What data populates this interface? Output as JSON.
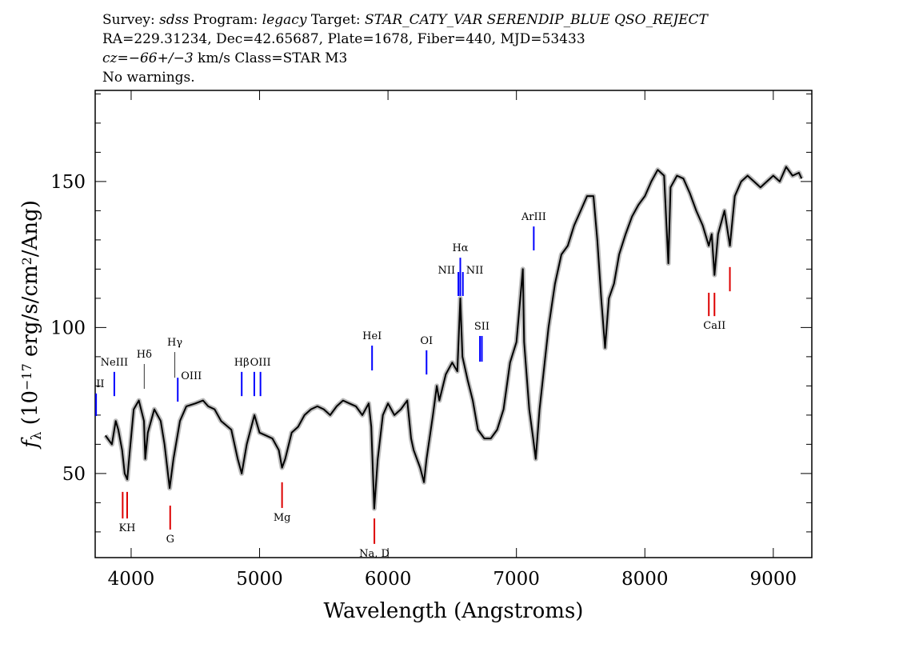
{
  "header": {
    "lines": [
      [
        {
          "text": "Survey: ",
          "italic": false
        },
        {
          "text": "sdss",
          "italic": true
        },
        {
          "text": " Program: ",
          "italic": false
        },
        {
          "text": "legacy",
          "italic": true
        },
        {
          "text": " Target: ",
          "italic": false
        },
        {
          "text": "STAR_CATY_VAR SERENDIP_BLUE QSO_REJECT",
          "italic": true
        }
      ],
      [
        {
          "text": "RA=229.31234, Dec=42.65687, Plate=1678, Fiber=440, MJD=53433",
          "italic": false
        }
      ],
      [
        {
          "text": "cz=",
          "italic": true
        },
        {
          "text": "−66+/−3",
          "italic": true
        },
        {
          "text": " km/s Class=STAR M3",
          "italic": false
        }
      ],
      [
        {
          "text": "No warnings.",
          "italic": false
        }
      ]
    ]
  },
  "chart_data": {
    "type": "line",
    "x_label": "Wavelength (Angstroms)",
    "y_label": [
      {
        "text": "f",
        "style": "italic"
      },
      {
        "text": "λ",
        "style": "sub"
      },
      {
        "text": " (10",
        "style": "normal"
      },
      {
        "text": "−17",
        "style": "sup"
      },
      {
        "text": " erg/s/cm",
        "style": "normal"
      },
      {
        "text": "2",
        "style": "sup"
      },
      {
        "text": "/Ang)",
        "style": "normal"
      }
    ],
    "xlim": [
      3720,
      9300
    ],
    "ylim": [
      21.2,
      181.2
    ],
    "xticks": [
      4000,
      5000,
      6000,
      7000,
      8000,
      9000
    ],
    "yticks": [
      50,
      100,
      150
    ],
    "yminorticks": [
      30,
      40,
      60,
      70,
      80,
      90,
      110,
      120,
      130,
      140,
      160,
      170,
      180
    ],
    "series": [
      {
        "name": "spectrum",
        "color": "#000000",
        "error_color": "#bbbbbb",
        "x": [
          3800,
          3850,
          3880,
          3900,
          3930,
          3950,
          3970,
          3990,
          4020,
          4060,
          4100,
          4110,
          4130,
          4180,
          4230,
          4260,
          4300,
          4330,
          4380,
          4430,
          4500,
          4560,
          4600,
          4650,
          4700,
          4780,
          4830,
          4861,
          4900,
          4960,
          5000,
          5050,
          5100,
          5150,
          5175,
          5200,
          5250,
          5300,
          5350,
          5400,
          5450,
          5500,
          5550,
          5600,
          5650,
          5700,
          5750,
          5800,
          5850,
          5870,
          5893,
          5920,
          5960,
          6000,
          6050,
          6100,
          6150,
          6180,
          6200,
          6250,
          6280,
          6300,
          6350,
          6380,
          6400,
          6450,
          6500,
          6540,
          6563,
          6580,
          6620,
          6660,
          6700,
          6750,
          6800,
          6850,
          6900,
          6950,
          7000,
          7040,
          7050,
          7060,
          7100,
          7130,
          7150,
          7180,
          7220,
          7250,
          7300,
          7350,
          7400,
          7450,
          7500,
          7550,
          7600,
          7630,
          7660,
          7690,
          7720,
          7760,
          7800,
          7850,
          7900,
          7950,
          8000,
          8050,
          8100,
          8150,
          8183,
          8200,
          8250,
          8300,
          8350,
          8400,
          8450,
          8498,
          8520,
          8542,
          8570,
          8620,
          8662,
          8700,
          8750,
          8800,
          8850,
          8900,
          8950,
          9000,
          9050,
          9100,
          9150,
          9200,
          9220
        ],
        "values": [
          63,
          60,
          68,
          65,
          58,
          50,
          48,
          58,
          72,
          75,
          68,
          55,
          64,
          72,
          68,
          60,
          45,
          55,
          68,
          73,
          74,
          75,
          73,
          72,
          68,
          65,
          55,
          50,
          60,
          70,
          64,
          63,
          62,
          58,
          52,
          55,
          64,
          66,
          70,
          72,
          73,
          72,
          70,
          73,
          75,
          74,
          73,
          70,
          74,
          66,
          38,
          55,
          70,
          74,
          70,
          72,
          75,
          62,
          58,
          52,
          47,
          55,
          70,
          80,
          75,
          84,
          88,
          85,
          110,
          90,
          82,
          75,
          65,
          62,
          62,
          65,
          72,
          88,
          95,
          115,
          120,
          95,
          72,
          62,
          55,
          72,
          88,
          100,
          115,
          125,
          128,
          135,
          140,
          145,
          145,
          130,
          110,
          93,
          110,
          115,
          125,
          132,
          138,
          142,
          145,
          150,
          154,
          152,
          122,
          148,
          152,
          151,
          146,
          140,
          135,
          128,
          132,
          118,
          132,
          140,
          128,
          145,
          150,
          152,
          150,
          148,
          150,
          152,
          150,
          155,
          152,
          153,
          151
        ]
      }
    ],
    "lines": [
      {
        "label": "OII",
        "x": 3727,
        "y": [
          69.7,
          77.4
        ],
        "color": "#0000ff",
        "kind": "emission"
      },
      {
        "label": "NeIII",
        "x": 3869,
        "y": [
          76.5,
          84.8
        ],
        "color": "#0000ff",
        "kind": "emission"
      },
      {
        "label": "Hδ",
        "x": 4102,
        "y": [
          79.0,
          87.5
        ],
        "color": "#333333",
        "kind": "emission"
      },
      {
        "label": "Hγ",
        "x": 4340,
        "y": [
          82.8,
          91.6
        ],
        "color": "#333333",
        "kind": "emission"
      },
      {
        "label": "OIII",
        "x": 4363,
        "y": [
          74.6,
          82.8
        ],
        "color": "#0000ff",
        "kind": "emission",
        "align": "right"
      },
      {
        "label": "Hβ",
        "x": 4861,
        "y": [
          76.5,
          84.8
        ],
        "color": "#0000ff",
        "kind": "emission"
      },
      {
        "label": null,
        "x": 4959,
        "y": [
          76.5,
          84.8
        ],
        "color": "#0000ff",
        "kind": "emission"
      },
      {
        "label": "OIII",
        "x": 5007,
        "y": [
          76.5,
          84.8
        ],
        "color": "#0000ff",
        "kind": "emission"
      },
      {
        "label": "HeI",
        "x": 5876,
        "y": [
          85.3,
          93.8
        ],
        "color": "#0000ff",
        "kind": "emission"
      },
      {
        "label": "OI",
        "x": 6300,
        "y": [
          83.9,
          92.2
        ],
        "color": "#0000ff",
        "kind": "emission"
      },
      {
        "label": "NII",
        "x": 6548,
        "y": [
          110.8,
          119.0
        ],
        "color": "#0000ff",
        "kind": "emission",
        "align": "left"
      },
      {
        "label": "Hα",
        "x": 6563,
        "y": [
          110.8,
          123.9
        ],
        "color": "#0000ff",
        "kind": "emission"
      },
      {
        "label": "NII",
        "x": 6583,
        "y": [
          110.8,
          119.0
        ],
        "color": "#0000ff",
        "kind": "emission",
        "align": "right"
      },
      {
        "label": null,
        "x": 6716,
        "y": [
          88.3,
          97.1
        ],
        "color": "#0000ff",
        "kind": "emission"
      },
      {
        "label": "SII",
        "x": 6731,
        "y": [
          88.3,
          97.1
        ],
        "color": "#0000ff",
        "kind": "emission"
      },
      {
        "label": "ArIII",
        "x": 7135,
        "y": [
          126.4,
          134.6
        ],
        "color": "#0000ff",
        "kind": "emission"
      },
      {
        "label": null,
        "x": 3934,
        "y": [
          34.6,
          43.7
        ],
        "color": "#dd0000",
        "kind": "absorption"
      },
      {
        "label": "KH",
        "x": 3969,
        "y": [
          34.6,
          43.7
        ],
        "color": "#dd0000",
        "kind": "absorption"
      },
      {
        "label": "G",
        "x": 4304,
        "y": [
          30.8,
          39.0
        ],
        "color": "#dd0000",
        "kind": "absorption"
      },
      {
        "label": "Mg",
        "x": 5175,
        "y": [
          38.2,
          47.0
        ],
        "color": "#dd0000",
        "kind": "absorption"
      },
      {
        "label": "Na, D",
        "x": 5894,
        "y": [
          25.9,
          34.6
        ],
        "color": "#dd0000",
        "kind": "absorption"
      },
      {
        "label": null,
        "x": 8498,
        "y": [
          103.9,
          111.9
        ],
        "color": "#dd0000",
        "kind": "absorption"
      },
      {
        "label": "CaII",
        "x": 8542,
        "y": [
          103.9,
          111.9
        ],
        "color": "#dd0000",
        "kind": "absorption"
      },
      {
        "label": null,
        "x": 8662,
        "y": [
          112.4,
          120.7
        ],
        "color": "#dd0000",
        "kind": "absorption"
      }
    ]
  }
}
